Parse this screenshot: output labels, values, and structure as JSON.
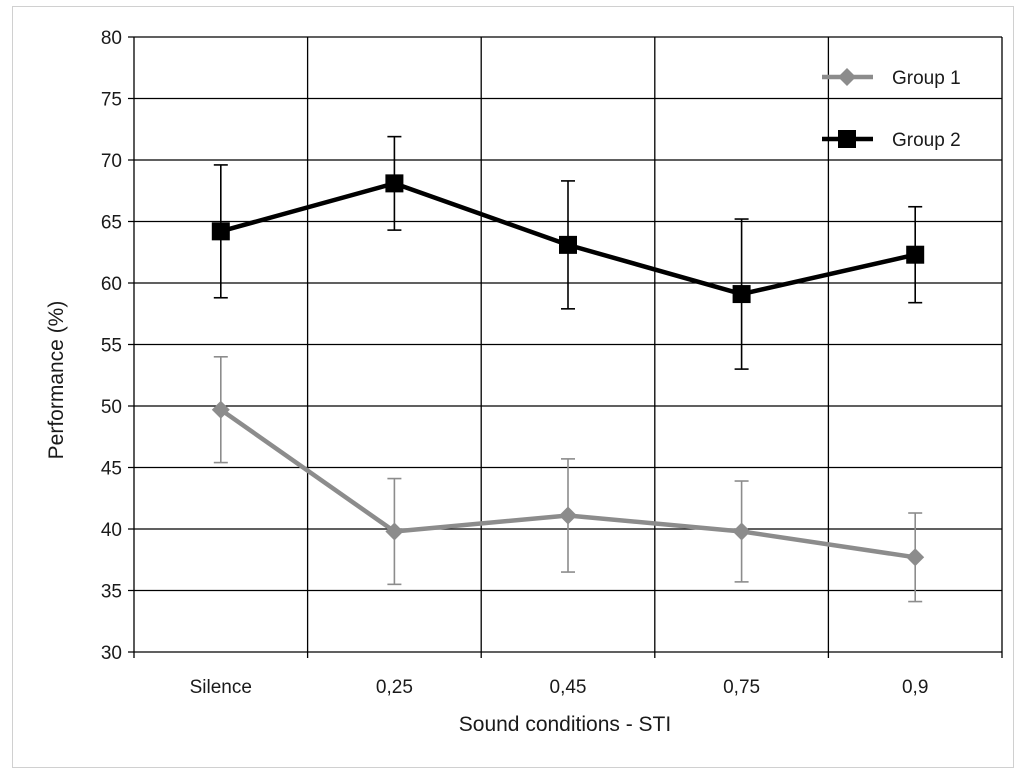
{
  "chart_data": {
    "type": "line",
    "xlabel": "Sound conditions - STI",
    "ylabel": "Performance (%)",
    "ylim": [
      30,
      80
    ],
    "yticks": [
      30,
      35,
      40,
      45,
      50,
      55,
      60,
      65,
      70,
      75,
      80
    ],
    "categories": [
      "Silence",
      "0,25",
      "0,45",
      "0,75",
      "0,9"
    ],
    "grid": true,
    "legend_position": "top-right",
    "series": [
      {
        "name": "Group 1",
        "color": "#8c8c8c",
        "marker": "diamond",
        "values": [
          49.7,
          39.8,
          41.1,
          39.8,
          37.7
        ],
        "error": [
          4.3,
          4.3,
          4.6,
          4.1,
          3.6
        ]
      },
      {
        "name": "Group 2",
        "color": "#000000",
        "marker": "square",
        "values": [
          64.2,
          68.1,
          63.1,
          59.1,
          62.3
        ],
        "error": [
          5.4,
          3.8,
          5.2,
          6.1,
          3.9
        ]
      }
    ]
  }
}
